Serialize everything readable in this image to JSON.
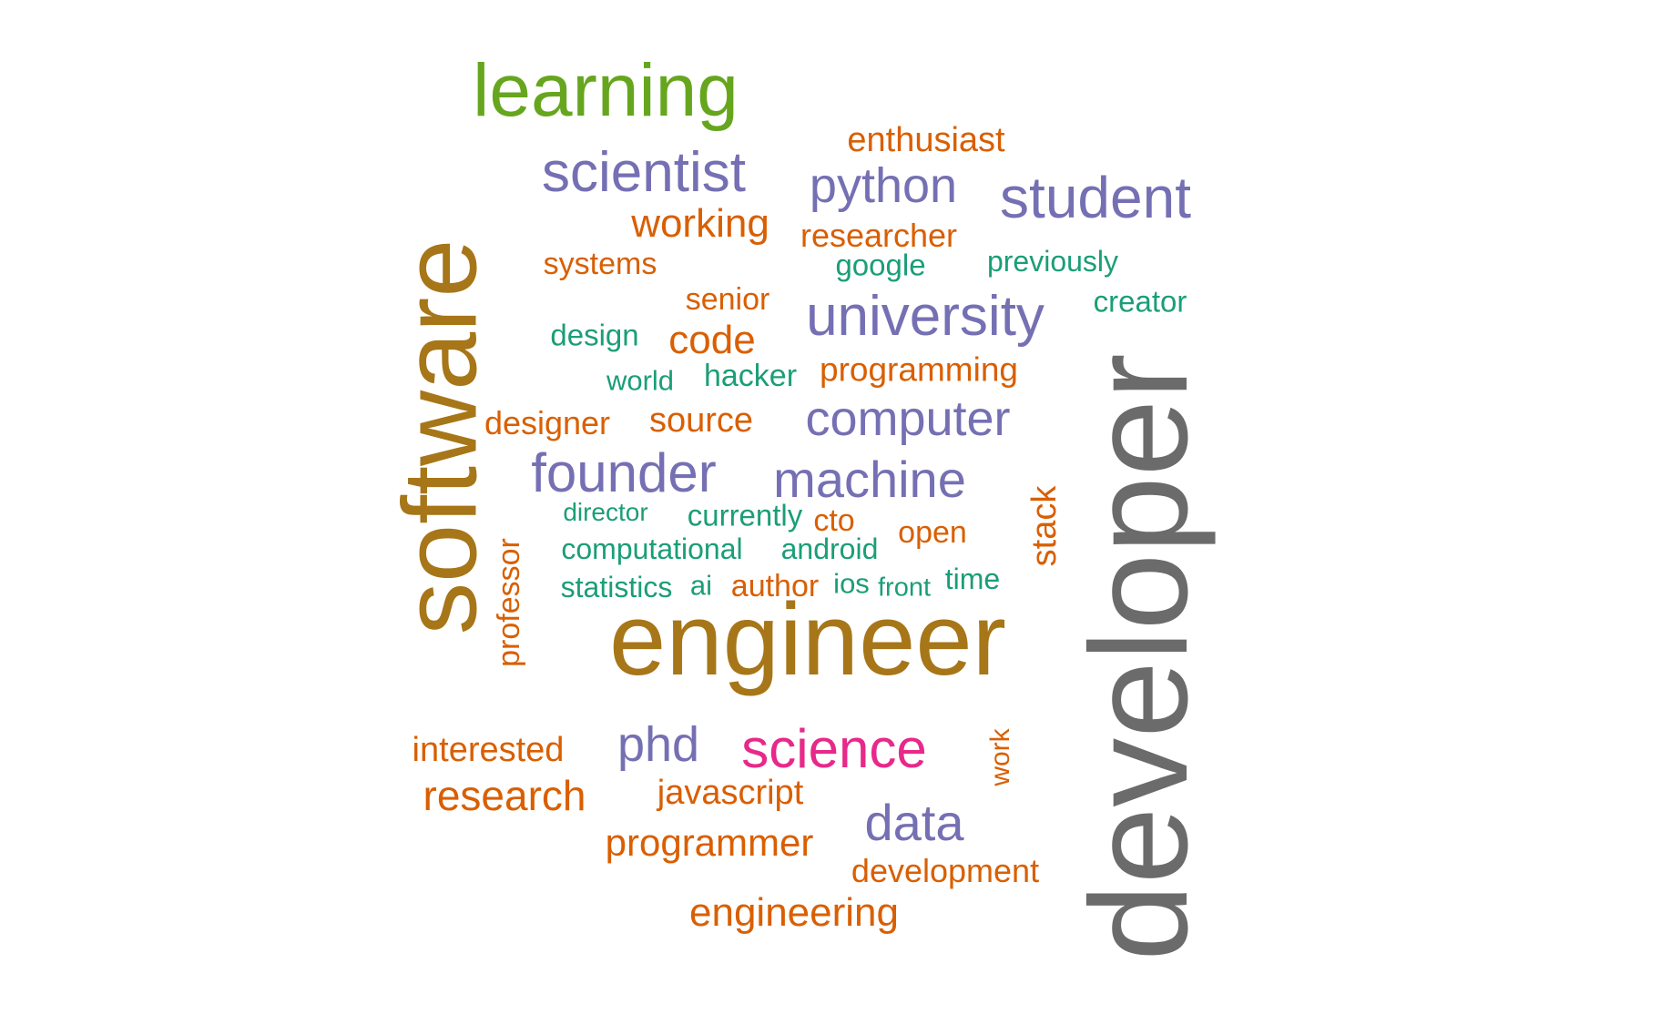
{
  "words": {
    "developer": "developer",
    "software": "software",
    "engineer": "engineer",
    "learning": "learning",
    "student": "student",
    "scientist": "scientist",
    "university": "university",
    "founder": "founder",
    "science": "science",
    "python": "python",
    "machine": "machine",
    "computer": "computer",
    "phd": "phd",
    "data": "data",
    "research": "research",
    "engineering": "engineering",
    "programmer": "programmer",
    "working": "working",
    "code": "code",
    "interested": "interested",
    "enthusiast": "enthusiast",
    "source": "source",
    "javascript": "javascript",
    "programming": "programming",
    "researcher": "researcher",
    "development": "development",
    "designer": "designer",
    "systems": "systems",
    "senior": "senior",
    "author": "author",
    "open": "open",
    "stack": "stack",
    "professor": "professor",
    "work": "work",
    "cto": "cto",
    "google": "google",
    "previously": "previously",
    "creator": "creator",
    "design": "design",
    "hacker": "hacker",
    "world": "world",
    "director": "director",
    "currently": "currently",
    "computational": "computational",
    "android": "android",
    "statistics": "statistics",
    "ai": "ai",
    "ios": "ios",
    "front": "front",
    "time": "time"
  },
  "colors": {
    "gray": "#6b6b6b",
    "gold": "#a67618",
    "green": "#66a61e",
    "purple": "#7570b3",
    "orange": "#d95f02",
    "teal": "#1b9e77",
    "pink": "#e7298a"
  }
}
